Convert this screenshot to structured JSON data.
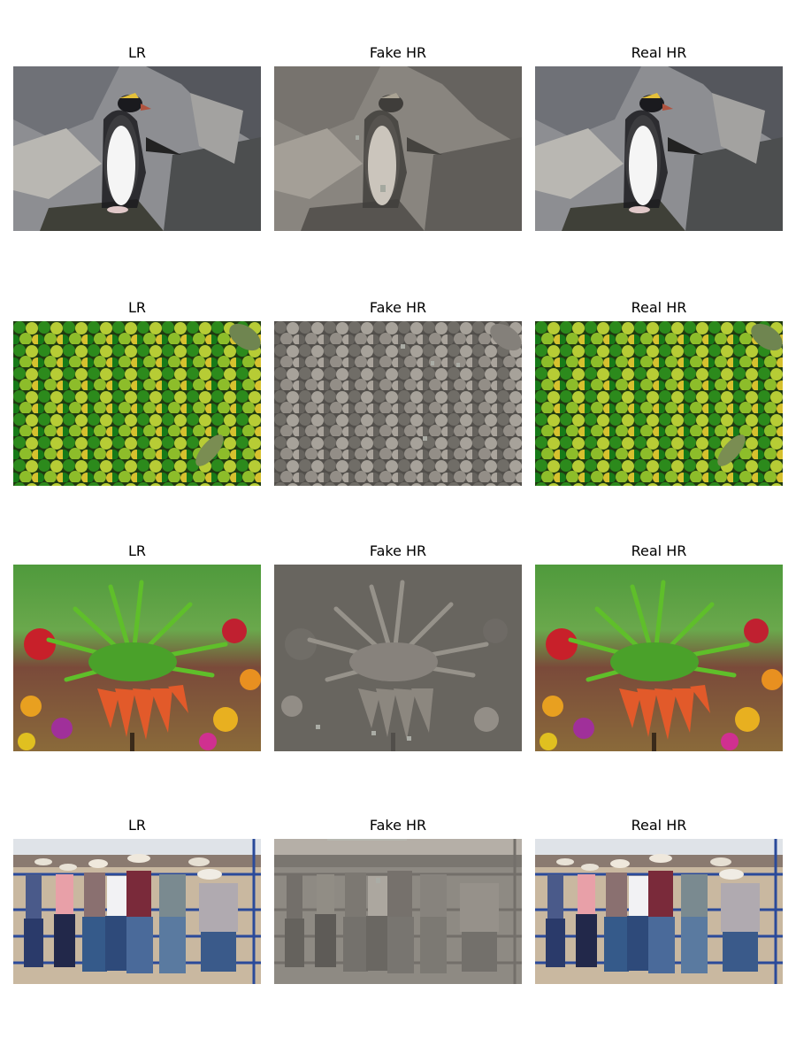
{
  "rows": [
    {
      "subject": "penguin",
      "titles": [
        "LR",
        "Fake HR",
        "Real HR"
      ]
    },
    {
      "subject": "limes",
      "titles": [
        "LR",
        "Fake HR",
        "Real HR"
      ]
    },
    {
      "subject": "crown-imperial-flower",
      "titles": [
        "LR",
        "Fake HR",
        "Real HR"
      ]
    },
    {
      "subject": "cowboys-at-fence",
      "titles": [
        "LR",
        "Fake HR",
        "Real HR"
      ]
    }
  ]
}
